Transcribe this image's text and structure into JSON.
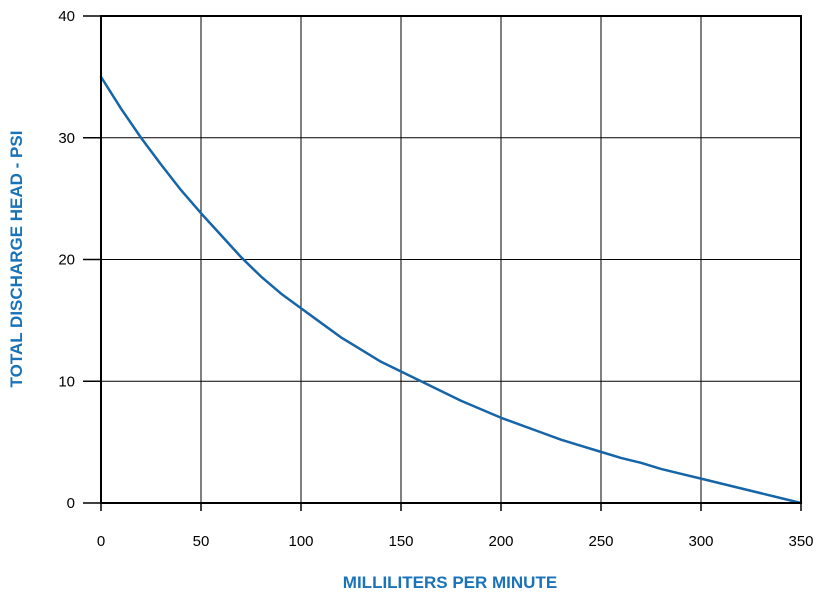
{
  "chart_data": {
    "type": "line",
    "title": "",
    "xlabel": "MILLILITERS PER MINUTE",
    "ylabel": "TOTAL DISCHARGE HEAD - PSI",
    "xlim": [
      0,
      350
    ],
    "ylim": [
      0,
      40
    ],
    "xticks": [
      0,
      50,
      100,
      150,
      200,
      250,
      300,
      350
    ],
    "yticks": [
      0,
      10,
      20,
      30,
      40
    ],
    "grid": true,
    "legend": "none",
    "colors": {
      "line": "#1565a8",
      "axis_label": "#1a73b8",
      "grid": "#000000"
    },
    "series": [
      {
        "x": [
          0,
          10,
          20,
          30,
          40,
          50,
          60,
          70,
          80,
          90,
          100,
          110,
          120,
          130,
          140,
          150,
          160,
          170,
          180,
          190,
          200,
          210,
          220,
          230,
          240,
          250,
          260,
          270,
          280,
          290,
          300,
          310,
          320,
          330,
          340,
          350
        ],
        "y": [
          35,
          32.4,
          30.0,
          27.8,
          25.7,
          23.8,
          22.0,
          20.2,
          18.6,
          17.2,
          16.0,
          14.8,
          13.6,
          12.6,
          11.6,
          10.8,
          10.0,
          9.2,
          8.4,
          7.7,
          7.0,
          6.4,
          5.8,
          5.2,
          4.7,
          4.2,
          3.7,
          3.3,
          2.8,
          2.4,
          2.0,
          1.6,
          1.2,
          0.8,
          0.4,
          0
        ]
      }
    ]
  }
}
